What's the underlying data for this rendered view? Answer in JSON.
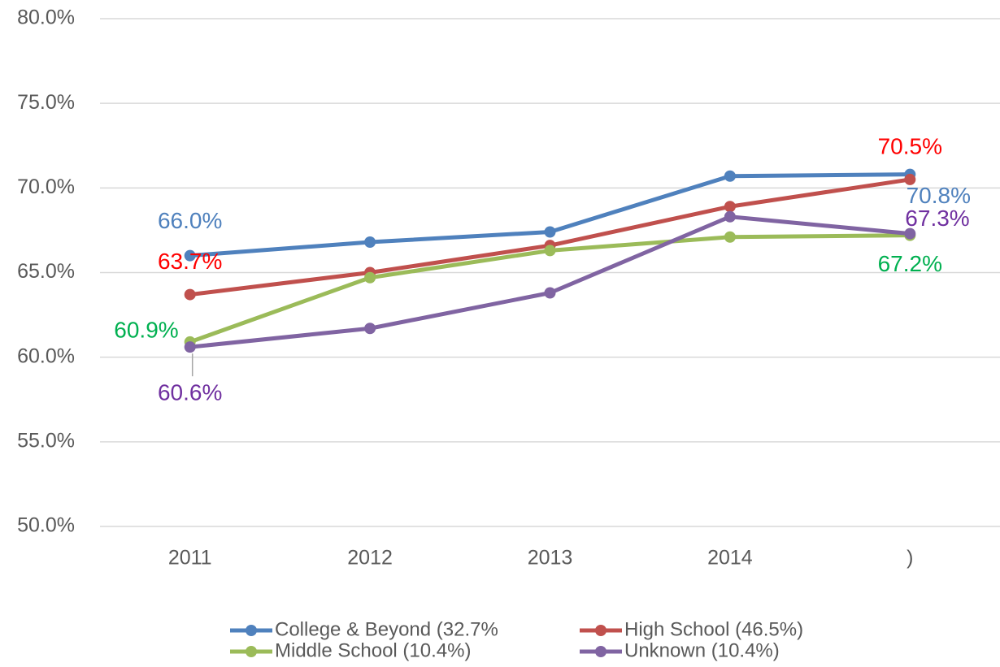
{
  "chart_data": {
    "type": "line",
    "categories": [
      "2011",
      "2012",
      "2013",
      "2014",
      ")"
    ],
    "ylim": [
      50,
      80
    ],
    "yticks": [
      {
        "value": 50,
        "label": "50.0%"
      },
      {
        "value": 55,
        "label": "55.0%"
      },
      {
        "value": 60,
        "label": "60.0%"
      },
      {
        "value": 65,
        "label": "65.0%"
      },
      {
        "value": 70,
        "label": "70.0%"
      },
      {
        "value": 75,
        "label": "75.0%"
      },
      {
        "value": 80,
        "label": "80.0%"
      }
    ],
    "grid": true,
    "legend": "bottom",
    "series": [
      {
        "name": "College & Beyond (32.7%",
        "color": "#4f81bd",
        "label_color": "#4f81bd",
        "values": [
          66.0,
          66.8,
          67.4,
          70.7,
          70.8
        ],
        "value_labels": [
          "66.0%",
          null,
          null,
          null,
          "70.8%"
        ]
      },
      {
        "name": "High School (46.5%)",
        "color": "#c0504d",
        "label_color": "#ff0000",
        "values": [
          63.7,
          65.0,
          66.6,
          68.9,
          70.5
        ],
        "value_labels": [
          "63.7%",
          null,
          null,
          null,
          "70.5%"
        ]
      },
      {
        "name": "Middle School (10.4%)",
        "color": "#9bbb59",
        "label_color": "#00b050",
        "values": [
          60.9,
          64.7,
          66.3,
          67.1,
          67.2
        ],
        "value_labels": [
          "60.9%",
          null,
          null,
          null,
          "67.2%"
        ]
      },
      {
        "name": "Unknown (10.4%)",
        "color": "#8064a2",
        "label_color": "#7030a0",
        "values": [
          60.6,
          61.7,
          63.8,
          68.3,
          67.3
        ],
        "value_labels": [
          "60.6%",
          null,
          null,
          null,
          "67.3%"
        ]
      }
    ]
  }
}
